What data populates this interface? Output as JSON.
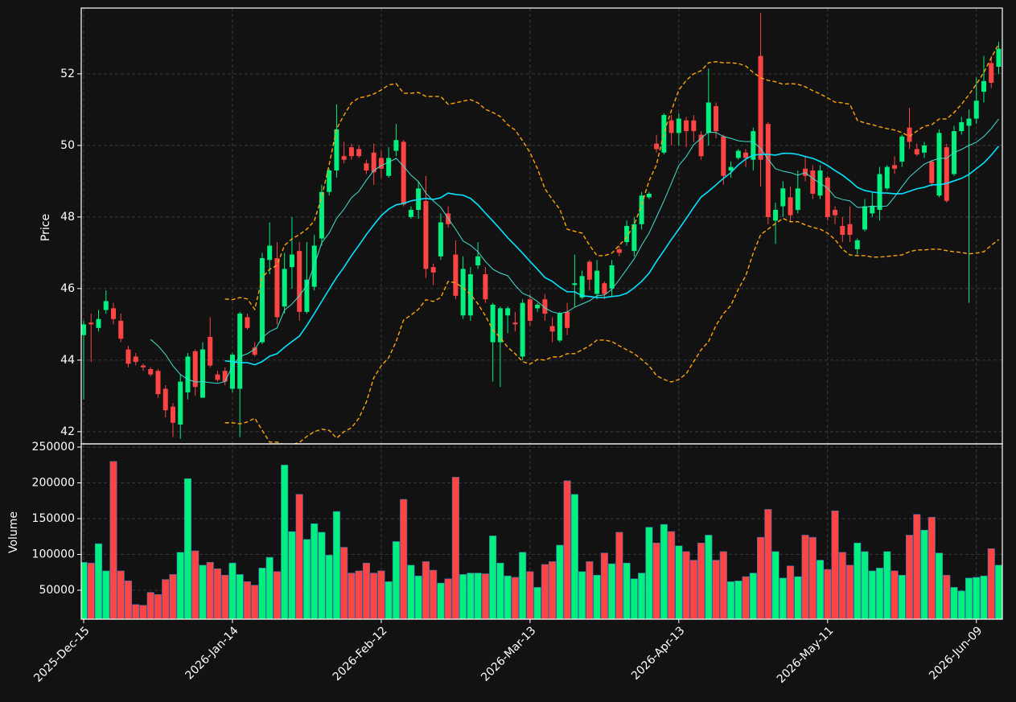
{
  "chart_data": {
    "type": "candlestick",
    "categories": [
      "2025-Dec-15",
      null,
      null,
      null,
      null,
      null,
      null,
      null,
      null,
      null,
      null,
      null,
      null,
      null,
      null,
      null,
      null,
      null,
      null,
      null,
      "2026-Jan-14",
      null,
      null,
      null,
      null,
      null,
      null,
      null,
      null,
      null,
      null,
      null,
      null,
      null,
      null,
      null,
      null,
      null,
      null,
      null,
      "2026-Feb-12",
      null,
      null,
      null,
      null,
      null,
      null,
      null,
      null,
      null,
      null,
      null,
      null,
      null,
      null,
      null,
      null,
      null,
      null,
      null,
      "2026-Mar-13",
      null,
      null,
      null,
      null,
      null,
      null,
      null,
      null,
      null,
      null,
      null,
      null,
      null,
      null,
      null,
      null,
      null,
      null,
      null,
      "2026-Apr-13",
      null,
      null,
      null,
      null,
      null,
      null,
      null,
      null,
      null,
      null,
      null,
      null,
      null,
      null,
      null,
      null,
      null,
      null,
      null,
      "2026-May-11",
      null,
      null,
      null,
      null,
      null,
      null,
      null,
      null,
      null,
      null,
      null,
      null,
      null,
      null,
      null,
      null,
      null,
      null,
      null,
      "2026-Jun-09",
      null,
      null,
      null
    ],
    "open": [
      44.7,
      45.05,
      44.9,
      45.4,
      45.45,
      45.1,
      44.3,
      44.1,
      43.85,
      43.75,
      43.7,
      43.2,
      42.7,
      42.2,
      43.1,
      44.25,
      42.95,
      44.65,
      43.6,
      43.7,
      43.2,
      43.2,
      45.2,
      44.35,
      44.5,
      46.8,
      46.85,
      45.5,
      46.6,
      47.05,
      45.35,
      46.05,
      47.4,
      48.7,
      49.3,
      49.7,
      49.95,
      49.9,
      49.5,
      49.8,
      49.65,
      49.15,
      49.85,
      50.1,
      48.0,
      48.2,
      48.45,
      46.6,
      46.9,
      48.1,
      46.95,
      45.25,
      45.25,
      46.65,
      46.4,
      44.5,
      44.5,
      45.25,
      45.05,
      44.1,
      45.7,
      45.45,
      45.7,
      44.95,
      44.55,
      45.35,
      46.1,
      45.75,
      46.75,
      45.85,
      46.15,
      46.0,
      47.1,
      47.3,
      47.05,
      47.8,
      48.55,
      50.05,
      49.8,
      50.7,
      50.35,
      50.7,
      50.7,
      50.3,
      50.35,
      51.1,
      50.25,
      49.3,
      49.65,
      49.8,
      49.6,
      52.5,
      50.6,
      47.9,
      48.3,
      48.55,
      48.2,
      49.35,
      49.3,
      48.6,
      49.1,
      48.2,
      47.75,
      47.8,
      47.1,
      47.65,
      48.1,
      48.2,
      48.8,
      49.45,
      49.55,
      50.5,
      49.9,
      49.8,
      49.55,
      48.6,
      49.95,
      49.2,
      50.4,
      50.55,
      50.75,
      51.5,
      52.3,
      52.2
    ],
    "high": [
      45.1,
      45.3,
      45.4,
      45.95,
      45.6,
      45.3,
      44.4,
      44.2,
      43.9,
      43.8,
      43.75,
      43.3,
      42.8,
      43.6,
      44.2,
      44.3,
      44.5,
      45.2,
      43.7,
      43.8,
      44.2,
      45.35,
      45.3,
      44.5,
      47.0,
      47.85,
      47.3,
      47.0,
      48.0,
      47.3,
      47.3,
      47.5,
      48.9,
      49.35,
      51.15,
      50.1,
      50.05,
      50.0,
      49.6,
      50.05,
      49.85,
      49.95,
      50.6,
      50.15,
      48.3,
      49.0,
      49.15,
      46.7,
      48.1,
      48.3,
      47.35,
      46.9,
      46.6,
      47.3,
      46.6,
      45.6,
      45.5,
      45.5,
      45.35,
      45.7,
      45.85,
      45.6,
      45.85,
      45.2,
      45.35,
      45.6,
      46.95,
      46.5,
      46.8,
      46.8,
      46.2,
      46.8,
      47.2,
      47.9,
      48.0,
      48.7,
      48.7,
      50.3,
      50.9,
      50.85,
      50.9,
      50.8,
      50.85,
      50.4,
      52.15,
      51.2,
      50.3,
      49.55,
      49.9,
      49.9,
      50.5,
      53.7,
      50.65,
      48.4,
      49.0,
      48.85,
      49.3,
      49.7,
      49.45,
      49.45,
      49.15,
      48.3,
      48.0,
      48.3,
      47.4,
      48.5,
      48.7,
      49.4,
      49.45,
      49.7,
      50.3,
      51.05,
      50.05,
      50.1,
      49.6,
      50.45,
      50.05,
      50.55,
      50.8,
      51.0,
      51.9,
      52.5,
      52.5,
      52.9
    ],
    "low": [
      42.9,
      43.95,
      44.8,
      45.3,
      45.0,
      44.5,
      43.8,
      43.85,
      43.7,
      43.55,
      42.95,
      42.4,
      41.85,
      41.8,
      42.9,
      43.0,
      42.95,
      43.8,
      43.4,
      43.3,
      43.1,
      41.85,
      44.85,
      44.1,
      44.45,
      46.4,
      45.0,
      45.3,
      46.0,
      45.1,
      45.3,
      45.95,
      47.2,
      48.6,
      49.1,
      49.5,
      49.6,
      49.65,
      49.2,
      48.9,
      49.1,
      49.1,
      49.7,
      48.3,
      47.95,
      47.95,
      46.3,
      46.1,
      46.8,
      47.7,
      45.7,
      45.15,
      45.1,
      46.55,
      45.6,
      43.4,
      43.25,
      44.75,
      44.8,
      44.0,
      44.95,
      45.35,
      45.1,
      44.5,
      44.5,
      44.7,
      45.5,
      45.7,
      45.95,
      45.7,
      45.7,
      45.8,
      46.9,
      47.2,
      46.9,
      47.65,
      48.5,
      49.8,
      49.75,
      50.0,
      50.0,
      49.95,
      50.1,
      49.6,
      50.0,
      50.2,
      48.9,
      49.1,
      49.6,
      49.4,
      49.3,
      48.85,
      47.8,
      47.25,
      48.0,
      47.85,
      48.1,
      49.0,
      48.5,
      48.5,
      47.9,
      47.8,
      47.3,
      47.3,
      46.95,
      47.6,
      48.0,
      47.9,
      48.75,
      49.2,
      49.4,
      49.9,
      49.7,
      49.65,
      48.85,
      48.55,
      48.4,
      49.15,
      50.3,
      45.6,
      50.6,
      51.2,
      51.6,
      52.0
    ],
    "close": [
      45.0,
      45.0,
      45.15,
      45.65,
      45.15,
      44.6,
      43.9,
      43.95,
      43.8,
      43.6,
      43.05,
      42.6,
      42.25,
      43.4,
      44.1,
      43.25,
      44.3,
      43.85,
      43.45,
      43.4,
      44.15,
      45.3,
      44.9,
      44.15,
      46.85,
      47.2,
      45.2,
      46.55,
      46.95,
      45.35,
      46.25,
      47.2,
      48.7,
      49.3,
      50.45,
      49.6,
      49.7,
      49.7,
      49.3,
      49.25,
      49.35,
      49.65,
      50.15,
      48.35,
      48.2,
      48.8,
      46.55,
      46.45,
      47.85,
      47.8,
      45.8,
      46.55,
      46.4,
      46.9,
      45.7,
      45.55,
      45.45,
      45.45,
      45.0,
      45.6,
      45.1,
      45.55,
      45.3,
      44.8,
      45.3,
      44.9,
      46.15,
      46.35,
      46.25,
      46.5,
      45.85,
      46.65,
      47.0,
      47.75,
      47.8,
      48.6,
      48.65,
      49.9,
      50.85,
      50.35,
      50.75,
      50.4,
      50.4,
      49.7,
      51.2,
      50.4,
      49.15,
      49.4,
      49.85,
      49.65,
      50.4,
      49.6,
      48.0,
      48.2,
      48.8,
      48.05,
      48.8,
      49.15,
      48.65,
      49.3,
      48.0,
      48.05,
      47.5,
      47.5,
      47.35,
      48.3,
      48.3,
      49.2,
      49.4,
      49.35,
      50.25,
      50.1,
      49.75,
      50.0,
      48.95,
      50.35,
      48.45,
      50.4,
      50.65,
      50.75,
      51.25,
      51.8,
      51.75,
      52.7
    ],
    "up_color": "#00f080",
    "down_color": "#ff4444",
    "ylabel": "Price",
    "ylim": [
      41.66,
      53.84
    ],
    "yticks": [
      42,
      44,
      46,
      48,
      50,
      52
    ],
    "grid": true,
    "overlays": [
      {
        "color": "#40e0d0",
        "line_width": 1,
        "line_style": "solid",
        "values": [
          null,
          null,
          null,
          null,
          null,
          null,
          null,
          null,
          null,
          44.58,
          44.4,
          44.16,
          43.84,
          43.6,
          43.46,
          43.39,
          43.4,
          43.37,
          43.35,
          43.4,
          43.84,
          44.1,
          44.18,
          44.3,
          44.63,
          44.8,
          44.9,
          45.4,
          45.57,
          45.8,
          46.09,
          46.65,
          47.28,
          47.55,
          47.96,
          48.22,
          48.54,
          48.72,
          49.03,
          49.3,
          49.44,
          49.53,
          49.64,
          49.42,
          49.17,
          48.99,
          48.67,
          48.45,
          48.27,
          47.96,
          47.66,
          47.33,
          47.21,
          47.03,
          46.76,
          46.54,
          46.43,
          46.36,
          46.09,
          45.87,
          45.78,
          45.64,
          45.46,
          45.35,
          45.3,
          45.35,
          45.48,
          45.57,
          45.66,
          45.8,
          45.82,
          45.98,
          46.25,
          46.54,
          46.83,
          47.21,
          47.55,
          48.0,
          48.45,
          48.94,
          49.44,
          49.69,
          50.02,
          50.2,
          50.38,
          50.36,
          50.25,
          50.2,
          50.13,
          50.11,
          50.11,
          49.91,
          49.62,
          49.35,
          49.28,
          49.24,
          49.17,
          49.24,
          49.08,
          48.94,
          48.81,
          48.56,
          48.49,
          48.45,
          48.27,
          48.27,
          48.31,
          48.29,
          48.31,
          48.56,
          48.85,
          49.12,
          49.3,
          49.48,
          49.57,
          49.64,
          49.64,
          49.8,
          49.89,
          50.0,
          50.09,
          50.25,
          50.47,
          50.74
        ]
      },
      {
        "color": "#00e5ff",
        "line_width": 1.6,
        "line_style": "solid",
        "values": [
          null,
          null,
          null,
          null,
          null,
          null,
          null,
          null,
          null,
          null,
          null,
          null,
          null,
          null,
          null,
          null,
          null,
          null,
          null,
          43.98,
          43.96,
          43.93,
          43.93,
          43.87,
          43.96,
          44.11,
          44.18,
          44.36,
          44.52,
          44.67,
          44.97,
          45.3,
          45.64,
          45.98,
          46.31,
          46.6,
          46.92,
          47.21,
          47.51,
          47.78,
          48.04,
          48.22,
          48.34,
          48.38,
          48.45,
          48.49,
          48.52,
          48.49,
          48.54,
          48.67,
          48.63,
          48.61,
          48.52,
          48.34,
          48.11,
          47.89,
          47.66,
          47.42,
          47.21,
          46.99,
          46.76,
          46.54,
          46.31,
          46.2,
          46.04,
          45.91,
          45.91,
          45.8,
          45.78,
          45.75,
          45.75,
          45.78,
          45.8,
          45.87,
          46.02,
          46.2,
          46.43,
          46.76,
          47.06,
          47.37,
          47.66,
          47.96,
          48.27,
          48.56,
          48.72,
          48.9,
          49.08,
          49.24,
          49.46,
          49.62,
          49.73,
          49.75,
          49.75,
          49.73,
          49.78,
          49.78,
          49.75,
          49.69,
          49.64,
          49.55,
          49.44,
          49.3,
          49.17,
          49.01,
          48.83,
          48.74,
          48.7,
          48.67,
          48.67,
          48.65,
          48.65,
          48.72,
          48.79,
          48.83,
          48.9,
          48.9,
          48.94,
          49.01,
          49.08,
          49.19,
          49.35,
          49.51,
          49.73,
          49.98
        ]
      },
      {
        "color": "#ffa500",
        "line_width": 1.4,
        "line_style": "dashed",
        "values": [
          null,
          null,
          null,
          null,
          null,
          null,
          null,
          null,
          null,
          null,
          null,
          null,
          null,
          null,
          null,
          null,
          null,
          null,
          null,
          45.71,
          45.69,
          45.75,
          45.71,
          45.42,
          46.31,
          46.54,
          46.65,
          47.21,
          47.39,
          47.51,
          47.66,
          47.89,
          48.56,
          49.46,
          50.47,
          50.85,
          51.19,
          51.33,
          51.37,
          51.44,
          51.55,
          51.69,
          51.73,
          51.46,
          51.46,
          51.48,
          51.37,
          51.37,
          51.37,
          51.15,
          51.19,
          51.24,
          51.28,
          51.19,
          51.01,
          50.92,
          50.81,
          50.58,
          50.43,
          50.13,
          49.8,
          49.35,
          48.79,
          48.49,
          48.22,
          47.66,
          47.6,
          47.55,
          47.21,
          46.92,
          46.92,
          46.99,
          47.21,
          47.44,
          47.78,
          48.34,
          49.01,
          49.46,
          50.36,
          50.97,
          51.55,
          51.82,
          52.0,
          52.09,
          52.31,
          52.34,
          52.31,
          52.31,
          52.29,
          52.22,
          52.04,
          51.89,
          51.82,
          51.78,
          51.71,
          51.73,
          51.71,
          51.64,
          51.53,
          51.44,
          51.33,
          51.21,
          51.19,
          51.15,
          50.7,
          50.63,
          50.58,
          50.52,
          50.47,
          50.43,
          50.36,
          50.25,
          50.4,
          50.54,
          50.58,
          50.74,
          50.74,
          50.92,
          51.15,
          51.42,
          51.71,
          52.04,
          52.45,
          52.83
        ]
      },
      {
        "color": "#ffa500",
        "line_width": 1.4,
        "line_style": "dashed",
        "values": [
          null,
          null,
          null,
          null,
          null,
          null,
          null,
          null,
          null,
          null,
          null,
          null,
          null,
          null,
          null,
          null,
          null,
          null,
          null,
          42.25,
          42.25,
          42.22,
          42.27,
          42.38,
          42.04,
          41.71,
          41.71,
          41.64,
          41.64,
          41.7,
          41.87,
          42.0,
          42.07,
          42.04,
          41.82,
          42.0,
          42.11,
          42.38,
          42.83,
          43.51,
          43.84,
          44.07,
          44.52,
          45.12,
          45.26,
          45.42,
          45.69,
          45.64,
          45.75,
          46.2,
          46.16,
          46.02,
          45.84,
          45.57,
          45.24,
          44.85,
          44.63,
          44.36,
          44.18,
          43.96,
          43.89,
          44.02,
          44.0,
          44.09,
          44.09,
          44.18,
          44.18,
          44.29,
          44.4,
          44.56,
          44.56,
          44.52,
          44.4,
          44.29,
          44.18,
          44.02,
          43.84,
          43.57,
          43.46,
          43.39,
          43.46,
          43.62,
          43.96,
          44.29,
          44.52,
          44.97,
          45.3,
          45.53,
          45.98,
          46.36,
          46.99,
          47.51,
          47.66,
          47.82,
          47.96,
          47.87,
          47.87,
          47.78,
          47.71,
          47.66,
          47.55,
          47.37,
          47.1,
          46.94,
          46.92,
          46.92,
          46.88,
          46.88,
          46.9,
          46.92,
          46.94,
          47.03,
          47.08,
          47.08,
          47.1,
          47.1,
          47.06,
          47.03,
          47.01,
          46.97,
          46.99,
          47.03,
          47.21,
          47.37
        ]
      }
    ],
    "volume": {
      "ylabel": "Volume",
      "edge_color": "#3a6fb0",
      "ylim": [
        9500,
        254500
      ],
      "yticks": [
        50000,
        100000,
        150000,
        200000,
        250000
      ],
      "values": [
        89000,
        88000,
        115000,
        77000,
        230000,
        77000,
        63000,
        30000,
        29000,
        47000,
        44000,
        65000,
        72000,
        103000,
        206000,
        105000,
        85000,
        89000,
        80000,
        71000,
        88000,
        72000,
        62000,
        57000,
        81000,
        96000,
        76000,
        225000,
        132000,
        184000,
        121000,
        143000,
        131000,
        99000,
        160000,
        110000,
        74000,
        77000,
        88000,
        74000,
        77000,
        62000,
        118000,
        177000,
        85000,
        70000,
        90000,
        78000,
        60000,
        66000,
        208000,
        72000,
        74000,
        74000,
        73000,
        126000,
        88000,
        70000,
        68000,
        103000,
        76000,
        54000,
        86000,
        90000,
        113000,
        203000,
        184000,
        76000,
        90000,
        71000,
        102000,
        87000,
        131000,
        88000,
        66000,
        74000,
        138000,
        116000,
        142000,
        132000,
        112000,
        104000,
        92000,
        116000,
        127000,
        92000,
        104000,
        62000,
        63000,
        69000,
        74000,
        124000,
        163000,
        104000,
        67000,
        84000,
        69000,
        127000,
        124000,
        92000,
        79000,
        161000,
        103000,
        85000,
        116000,
        104000,
        77000,
        81000,
        104000,
        77000,
        71000,
        127000,
        156000,
        134000,
        152000,
        102000,
        71000,
        54000,
        49000,
        67000,
        68000,
        70000,
        108000,
        85000
      ]
    }
  }
}
